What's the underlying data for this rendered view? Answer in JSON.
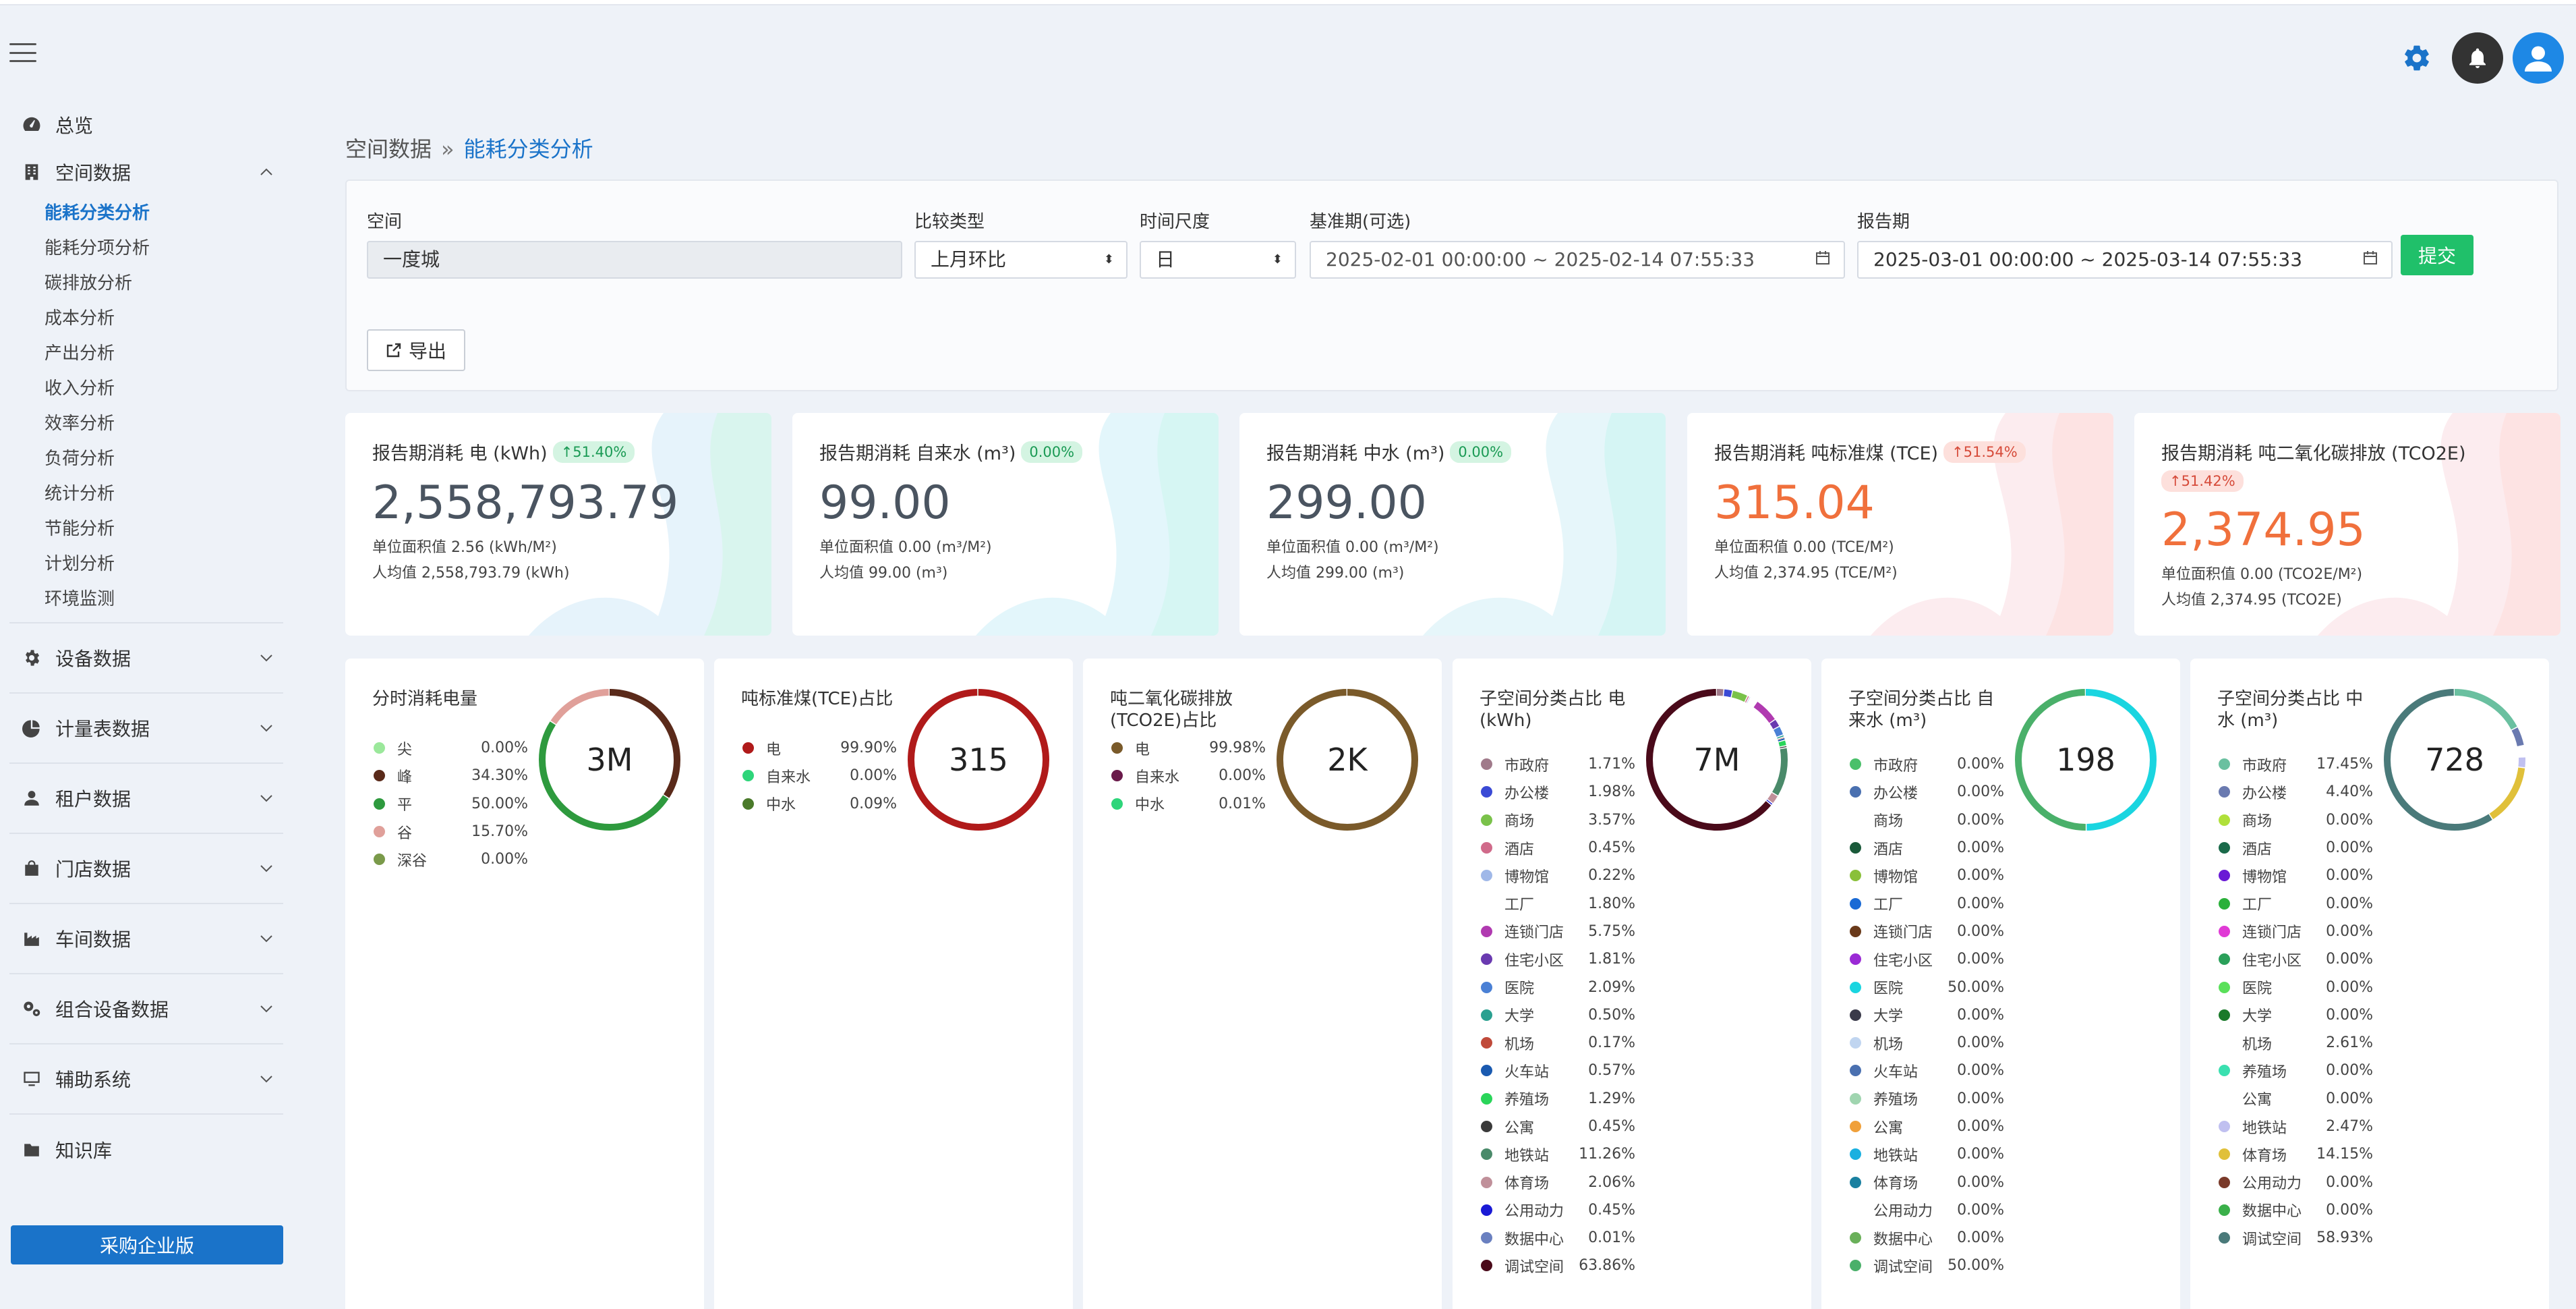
{
  "sidebar": {
    "overview": "总览",
    "space_data": "空间数据",
    "sub_items": [
      "能耗分类分析",
      "能耗分项分析",
      "碳排放分析",
      "成本分析",
      "产出分析",
      "收入分析",
      "效率分析",
      "负荷分析",
      "统计分析",
      "节能分析",
      "计划分析",
      "环境监测"
    ],
    "active_sub": "能耗分类分析",
    "groups": [
      "设备数据",
      "计量表数据",
      "租户数据",
      "门店数据",
      "车间数据",
      "组合设备数据",
      "辅助系统"
    ],
    "knowledge": "知识库",
    "buy_button": "采购企业版"
  },
  "breadcrumb": {
    "parent": "空间数据",
    "sep": "»",
    "current": "能耗分类分析"
  },
  "filter": {
    "space_label": "空间",
    "space_value": "一度城",
    "compare_label": "比较类型",
    "compare_value": "上月环比",
    "time_label": "时间尺度",
    "time_value": "日",
    "base_label": "基准期(可选)",
    "base_value": "2025-02-01 00:00:00 ~ 2025-02-14 07:55:33",
    "report_label": "报告期",
    "report_value": "2025-03-01 00:00:00 ~ 2025-03-14 07:55:33",
    "submit": "提交",
    "export": "导出"
  },
  "kpis": [
    {
      "title": "报告期消耗 电 (kWh)",
      "badge": "↑51.40%",
      "value": "2,558,793.79",
      "unit_area": "单位面积值 2.56 (kWh/M²)",
      "per_capita": "人均值 2,558,793.79 (kWh)",
      "color": "#4a5460",
      "badge_type": "g"
    },
    {
      "title": "报告期消耗 自来水 (m³)",
      "badge": "0.00%",
      "value": "99.00",
      "unit_area": "单位面积值 0.00 (m³/M²)",
      "per_capita": "人均值 99.00 (m³)",
      "color": "#4a5460",
      "badge_type": "g"
    },
    {
      "title": "报告期消耗 中水 (m³)",
      "badge": "0.00%",
      "value": "299.00",
      "unit_area": "单位面积值 0.00 (m³/M²)",
      "per_capita": "人均值 299.00 (m³)",
      "color": "#4a5460",
      "badge_type": "g"
    },
    {
      "title": "报告期消耗 吨标准煤 (TCE)",
      "badge": "↑51.54%",
      "value": "315.04",
      "unit_area": "单位面积值 0.00 (TCE/M²)",
      "per_capita": "人均值 2,374.95 (TCE/M²)",
      "color": "#f0703c",
      "badge_type": "r"
    },
    {
      "title": "报告期消耗 吨二氧化碳排放 (TCO2E)",
      "badge": "↑51.42%",
      "value": "2,374.95",
      "unit_area": "单位面积值 0.00 (TCO2E/M²)",
      "per_capita": "人均值 2,374.95 (TCO2E)",
      "color": "#f0703c",
      "badge_type": "r"
    }
  ],
  "donuts": [
    {
      "title": "分时消耗电量",
      "center": "3M",
      "items": [
        {
          "name": "尖",
          "pct": "0.00%",
          "value": 0,
          "color": "#9be89b"
        },
        {
          "name": "峰",
          "pct": "34.30%",
          "value": 34.3,
          "color": "#5a2a1a"
        },
        {
          "name": "平",
          "pct": "50.00%",
          "value": 50.0,
          "color": "#2e9a3e"
        },
        {
          "name": "谷",
          "pct": "15.70%",
          "value": 15.7,
          "color": "#e0a09a"
        },
        {
          "name": "深谷",
          "pct": "0.00%",
          "value": 0,
          "color": "#7a9a4a"
        }
      ]
    },
    {
      "title": "吨标准煤(TCE)占比",
      "center": "315",
      "items": [
        {
          "name": "电",
          "pct": "99.90%",
          "value": 99.9,
          "color": "#b01a1a"
        },
        {
          "name": "自来水",
          "pct": "0.00%",
          "value": 0,
          "color": "#2ed57a"
        },
        {
          "name": "中水",
          "pct": "0.09%",
          "value": 0.09,
          "color": "#4a7a2a"
        }
      ]
    },
    {
      "title": "吨二氧化碳排放(TCO2E)占比",
      "center": "2K",
      "items": [
        {
          "name": "电",
          "pct": "99.98%",
          "value": 99.98,
          "color": "#7a5a2a"
        },
        {
          "name": "自来水",
          "pct": "0.00%",
          "value": 0,
          "color": "#6a1a4a"
        },
        {
          "name": "中水",
          "pct": "0.01%",
          "value": 0.01,
          "color": "#2ed57a"
        }
      ]
    },
    {
      "title": "子空间分类占比 电 (kWh)",
      "center": "7M",
      "items": [
        {
          "name": "市政府",
          "pct": "1.71%",
          "value": 1.71,
          "color": "#a07a8a"
        },
        {
          "name": "办公楼",
          "pct": "1.98%",
          "value": 1.98,
          "color": "#3a4ad5"
        },
        {
          "name": "商场",
          "pct": "3.57%",
          "value": 3.57,
          "color": "#7ac24a"
        },
        {
          "name": "酒店",
          "pct": "0.45%",
          "value": 0.45,
          "color": "#d06a8a"
        },
        {
          "name": "博物馆",
          "pct": "0.22%",
          "value": 0.22,
          "color": "#a0b8e8"
        },
        {
          "name": "工厂",
          "pct": "1.80%",
          "value": 1.8,
          "color": "#ffffff"
        },
        {
          "name": "连锁门店",
          "pct": "5.75%",
          "value": 5.75,
          "color": "#b03ab0"
        },
        {
          "name": "住宅小区",
          "pct": "1.81%",
          "value": 1.81,
          "color": "#6a3ab0"
        },
        {
          "name": "医院",
          "pct": "2.09%",
          "value": 2.09,
          "color": "#4a80d5"
        },
        {
          "name": "大学",
          "pct": "0.50%",
          "value": 0.5,
          "color": "#2aa090"
        },
        {
          "name": "机场",
          "pct": "0.17%",
          "value": 0.17,
          "color": "#c04a3a"
        },
        {
          "name": "火车站",
          "pct": "0.57%",
          "value": 0.57,
          "color": "#1a5ab0"
        },
        {
          "name": "养殖场",
          "pct": "1.29%",
          "value": 1.29,
          "color": "#2ad55a"
        },
        {
          "name": "公寓",
          "pct": "0.45%",
          "value": 0.45,
          "color": "#3a3a3a"
        },
        {
          "name": "地铁站",
          "pct": "11.26%",
          "value": 11.26,
          "color": "#4a8a6a"
        },
        {
          "name": "体育场",
          "pct": "2.06%",
          "value": 2.06,
          "color": "#c0909a"
        },
        {
          "name": "公用动力",
          "pct": "0.45%",
          "value": 0.45,
          "color": "#1a1ad5"
        },
        {
          "name": "数据中心",
          "pct": "0.01%",
          "value": 0.01,
          "color": "#6a80c0"
        },
        {
          "name": "调试空间",
          "pct": "63.86%",
          "value": 63.86,
          "color": "#4a0a1a"
        }
      ]
    },
    {
      "title": "子空间分类占比 自来水 (m³)",
      "center": "198",
      "items": [
        {
          "name": "市政府",
          "pct": "0.00%",
          "value": 0,
          "color": "#4ac06a"
        },
        {
          "name": "办公楼",
          "pct": "0.00%",
          "value": 0,
          "color": "#4a70b0"
        },
        {
          "name": "商场",
          "pct": "0.00%",
          "value": 0,
          "color": "#ffffff"
        },
        {
          "name": "酒店",
          "pct": "0.00%",
          "value": 0,
          "color": "#1a5a3a"
        },
        {
          "name": "博物馆",
          "pct": "0.00%",
          "value": 0,
          "color": "#8ac03a"
        },
        {
          "name": "工厂",
          "pct": "0.00%",
          "value": 0,
          "color": "#1a6ad5"
        },
        {
          "name": "连锁门店",
          "pct": "0.00%",
          "value": 0,
          "color": "#6a3a1a"
        },
        {
          "name": "住宅小区",
          "pct": "0.00%",
          "value": 0,
          "color": "#9a2ad5"
        },
        {
          "name": "医院",
          "pct": "50.00%",
          "value": 50.0,
          "color": "#1ad5e0"
        },
        {
          "name": "大学",
          "pct": "0.00%",
          "value": 0,
          "color": "#3a3a4a"
        },
        {
          "name": "机场",
          "pct": "0.00%",
          "value": 0,
          "color": "#c0d5f0"
        },
        {
          "name": "火车站",
          "pct": "0.00%",
          "value": 0,
          "color": "#4a70b0"
        },
        {
          "name": "养殖场",
          "pct": "0.00%",
          "value": 0,
          "color": "#a0d5b0"
        },
        {
          "name": "公寓",
          "pct": "0.00%",
          "value": 0,
          "color": "#f0a03a"
        },
        {
          "name": "地铁站",
          "pct": "0.00%",
          "value": 0,
          "color": "#1ab0e0"
        },
        {
          "name": "体育场",
          "pct": "0.00%",
          "value": 0,
          "color": "#1a80a0"
        },
        {
          "name": "公用动力",
          "pct": "0.00%",
          "value": 0,
          "color": "#ffffff"
        },
        {
          "name": "数据中心",
          "pct": "0.00%",
          "value": 0,
          "color": "#6ab05a"
        },
        {
          "name": "调试空间",
          "pct": "50.00%",
          "value": 50.0,
          "color": "#4ab06a"
        }
      ]
    },
    {
      "title": "子空间分类占比 中水 (m³)",
      "center": "728",
      "items": [
        {
          "name": "市政府",
          "pct": "17.45%",
          "value": 17.45,
          "color": "#6ac0a0"
        },
        {
          "name": "办公楼",
          "pct": "4.40%",
          "value": 4.4,
          "color": "#6a7ab0"
        },
        {
          "name": "商场",
          "pct": "0.00%",
          "value": 0,
          "color": "#b0e03a"
        },
        {
          "name": "酒店",
          "pct": "0.00%",
          "value": 0,
          "color": "#1a6a4a"
        },
        {
          "name": "博物馆",
          "pct": "0.00%",
          "value": 0,
          "color": "#6a1ad5"
        },
        {
          "name": "工厂",
          "pct": "0.00%",
          "value": 0,
          "color": "#2ab03a"
        },
        {
          "name": "连锁门店",
          "pct": "0.00%",
          "value": 0,
          "color": "#e03ad5"
        },
        {
          "name": "住宅小区",
          "pct": "0.00%",
          "value": 0,
          "color": "#2aa05a"
        },
        {
          "name": "医院",
          "pct": "0.00%",
          "value": 0,
          "color": "#5ae05a"
        },
        {
          "name": "大学",
          "pct": "0.00%",
          "value": 0,
          "color": "#1a7a2a"
        },
        {
          "name": "机场",
          "pct": "2.61%",
          "value": 2.61,
          "color": "#ffffff"
        },
        {
          "name": "养殖场",
          "pct": "0.00%",
          "value": 0,
          "color": "#3ae0b0"
        },
        {
          "name": "公寓",
          "pct": "0.00%",
          "value": 0,
          "color": "#ffffff"
        },
        {
          "name": "地铁站",
          "pct": "2.47%",
          "value": 2.47,
          "color": "#c0c0f0"
        },
        {
          "name": "体育场",
          "pct": "14.15%",
          "value": 14.15,
          "color": "#e0c03a"
        },
        {
          "name": "公用动力",
          "pct": "0.00%",
          "value": 0,
          "color": "#7a3a2a"
        },
        {
          "name": "数据中心",
          "pct": "0.00%",
          "value": 0,
          "color": "#3ab04a"
        },
        {
          "name": "调试空间",
          "pct": "58.93%",
          "value": 58.93,
          "color": "#4a7a7a"
        }
      ]
    }
  ]
}
